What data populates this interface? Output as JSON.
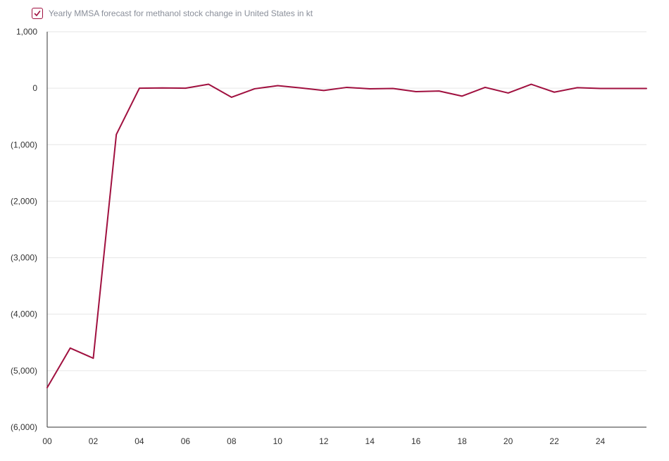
{
  "chart_data": {
    "type": "line",
    "title": "",
    "xlabel": "",
    "ylabel": "",
    "x": [
      "00",
      "01",
      "02",
      "03",
      "04",
      "05",
      "06",
      "07",
      "08",
      "09",
      "10",
      "11",
      "12",
      "13",
      "14",
      "15",
      "16",
      "17",
      "18",
      "19",
      "20",
      "21",
      "22",
      "23",
      "24",
      "25",
      "26"
    ],
    "x_tick_labels": [
      "00",
      "02",
      "04",
      "06",
      "08",
      "10",
      "12",
      "14",
      "16",
      "18",
      "20",
      "22",
      "24"
    ],
    "y_tick_values": [
      1000,
      0,
      -1000,
      -2000,
      -3000,
      -4000,
      -5000,
      -6000
    ],
    "y_tick_labels": [
      "1,000",
      "0",
      "(1,000)",
      "(2,000)",
      "(3,000)",
      "(4,000)",
      "(5,000)",
      "(6,000)"
    ],
    "ylim": [
      -6000,
      1000
    ],
    "grid": true,
    "legend_position": "top-left",
    "series": [
      {
        "name": "Yearly MMSA forecast for methanol stock change in United States in kt",
        "color": "#a0103f",
        "values": [
          -5300,
          -4600,
          -4780,
          -820,
          0,
          5,
          0,
          70,
          -160,
          -10,
          45,
          5,
          -40,
          15,
          -10,
          -5,
          -60,
          -50,
          -140,
          15,
          -85,
          70,
          -70,
          10,
          -5,
          -5,
          -5
        ]
      }
    ],
    "colors": {
      "line": "#a0103f",
      "grid": "#e6e6e6",
      "axis": "#333333",
      "legend_text": "#8a8f9a",
      "tick_text": "#333333"
    }
  }
}
